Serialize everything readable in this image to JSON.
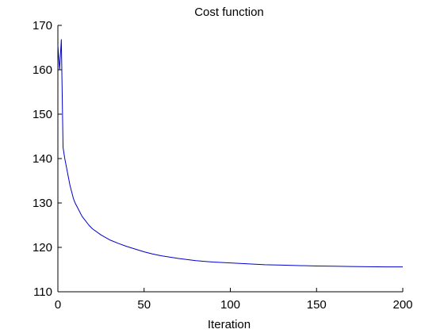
{
  "chart_data": {
    "type": "line",
    "title": "Cost function",
    "xlabel": "Iteration",
    "ylabel": "",
    "xlim": [
      0,
      200
    ],
    "ylim": [
      110,
      170
    ],
    "xticks": [
      0,
      50,
      100,
      150,
      200
    ],
    "yticks": [
      110,
      120,
      130,
      140,
      150,
      160,
      170
    ],
    "grid": false,
    "legend": "none",
    "series": [
      {
        "color": "#0000cc",
        "x": [
          0,
          1,
          2,
          3,
          4,
          5,
          6,
          7,
          8,
          9,
          10,
          12,
          14,
          16,
          18,
          20,
          25,
          30,
          35,
          40,
          45,
          50,
          55,
          60,
          70,
          80,
          90,
          100,
          110,
          120,
          130,
          140,
          150,
          160,
          170,
          180,
          190,
          200
        ],
        "y": [
          165.5,
          160.0,
          166.8,
          142.5,
          140.0,
          138.0,
          136.0,
          134.0,
          132.5,
          131.0,
          130.0,
          128.5,
          127.0,
          126.0,
          125.0,
          124.2,
          122.8,
          121.7,
          120.9,
          120.2,
          119.6,
          119.0,
          118.5,
          118.1,
          117.5,
          117.0,
          116.7,
          116.5,
          116.3,
          116.1,
          116.0,
          115.9,
          115.8,
          115.75,
          115.7,
          115.65,
          115.6,
          115.6
        ]
      }
    ]
  }
}
